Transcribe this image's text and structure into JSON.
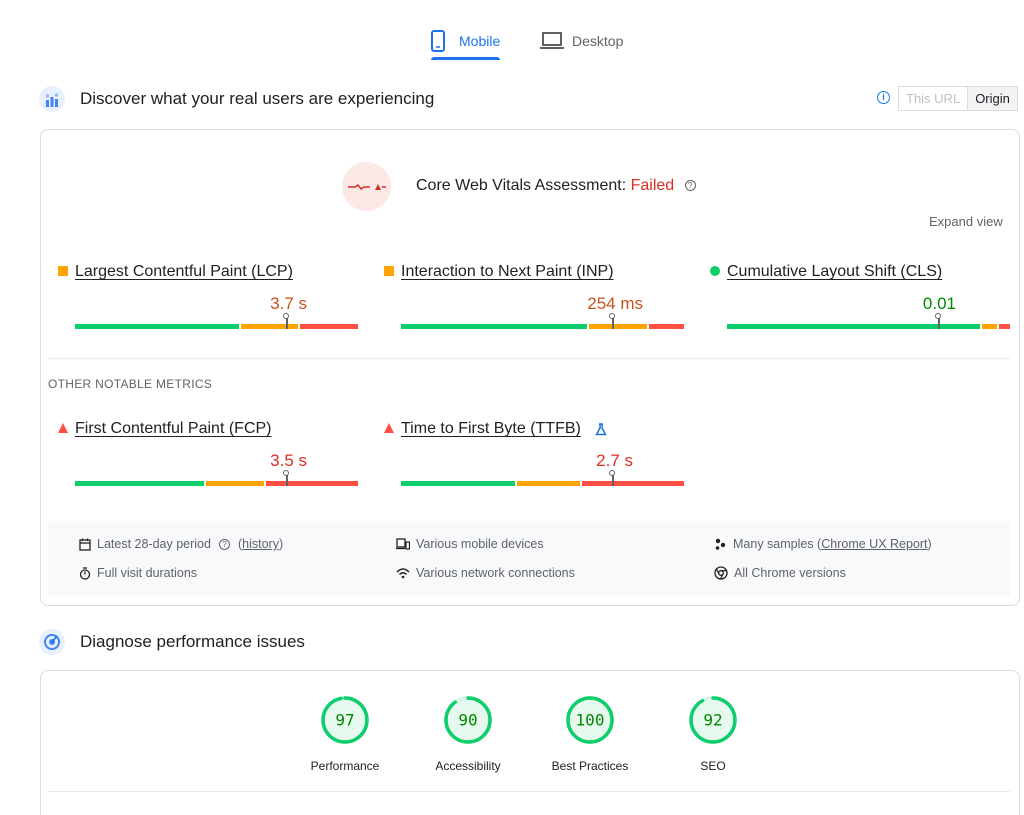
{
  "tabs": {
    "mobile": "Mobile",
    "desktop": "Desktop"
  },
  "field": {
    "title": "Discover what your real users are experiencing",
    "toggle": {
      "this_url": "This URL",
      "origin": "Origin"
    },
    "assessment_label": "Core Web Vitals Assessment:",
    "assessment_result": "Failed",
    "expand_view": "Expand view",
    "metrics": [
      {
        "name": "Largest Contentful Paint (LCP)",
        "value": "3.7 s",
        "status": "needs-improvement",
        "color": "#c5531f"
      },
      {
        "name": "Interaction to Next Paint (INP)",
        "value": "254 ms",
        "status": "needs-improvement",
        "color": "#c5531f"
      },
      {
        "name": "Cumulative Layout Shift (CLS)",
        "value": "0.01",
        "status": "good",
        "color": "#008800"
      }
    ],
    "other_label": "OTHER NOTABLE METRICS",
    "other_metrics": [
      {
        "name": "First Contentful Paint (FCP)",
        "value": "3.5 s",
        "status": "poor",
        "color": "#d93025"
      },
      {
        "name": "Time to First Byte (TTFB)",
        "value": "2.7 s",
        "status": "poor",
        "color": "#d93025"
      }
    ],
    "info": {
      "period": "Latest 28-day period",
      "history": "(history)",
      "history_link": "history",
      "devices": "Various mobile devices",
      "samples_prefix": "Many samples (",
      "samples_link": "Chrome UX Report",
      "samples_suffix": ")",
      "durations": "Full visit durations",
      "network": "Various network connections",
      "versions": "All Chrome versions"
    }
  },
  "lab": {
    "title": "Diagnose performance issues",
    "scores": [
      {
        "label": "Performance",
        "score": 97
      },
      {
        "label": "Accessibility",
        "score": 90
      },
      {
        "label": "Best Practices",
        "score": 100
      },
      {
        "label": "SEO",
        "score": 92
      }
    ]
  },
  "colors": {
    "good": "#0cce6b",
    "average": "#ffa400",
    "poor": "#ff4e42",
    "accent": "#1a73e8"
  }
}
